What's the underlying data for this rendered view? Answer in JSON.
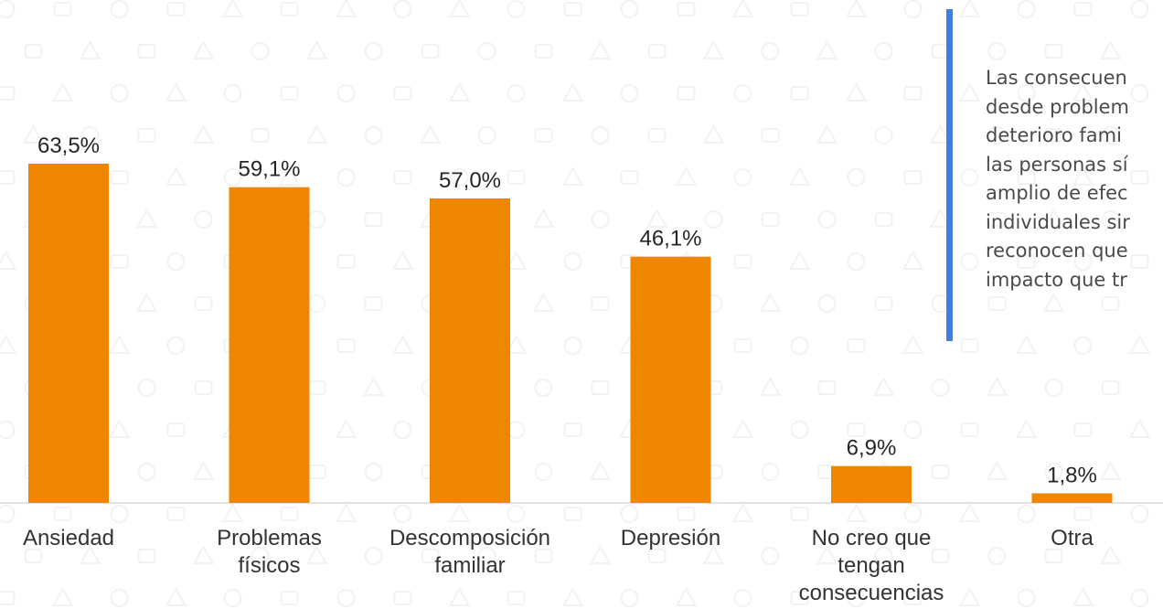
{
  "colors": {
    "bar": "#EE8600",
    "accent": "#3D7FE6",
    "axis": "#D9D9D9",
    "pattern": "#F2F2F2"
  },
  "side_panel": {
    "text": "Las consecuen\ndesde problem\ndeterioro fami\nlas personas sí\namplio de efec\nindividuales sir\nreconocen que\nimpacto que tr"
  },
  "chart_data": {
    "type": "bar",
    "title": "",
    "xlabel": "",
    "ylabel": "",
    "ylim": [
      0,
      70
    ],
    "grid": false,
    "categories": [
      [
        "Ansiedad"
      ],
      [
        "Problemas",
        "físicos"
      ],
      [
        "Descomposición",
        "familiar"
      ],
      [
        "Depresión"
      ],
      [
        "No creo que",
        "tengan",
        "consecuencias"
      ],
      [
        "Otra"
      ]
    ],
    "values": [
      63.5,
      59.1,
      57.0,
      46.1,
      6.9,
      1.8
    ],
    "value_labels": [
      "63,5%",
      "59,1%",
      "57,0%",
      "46,1%",
      "6,9%",
      "1,8%"
    ]
  }
}
